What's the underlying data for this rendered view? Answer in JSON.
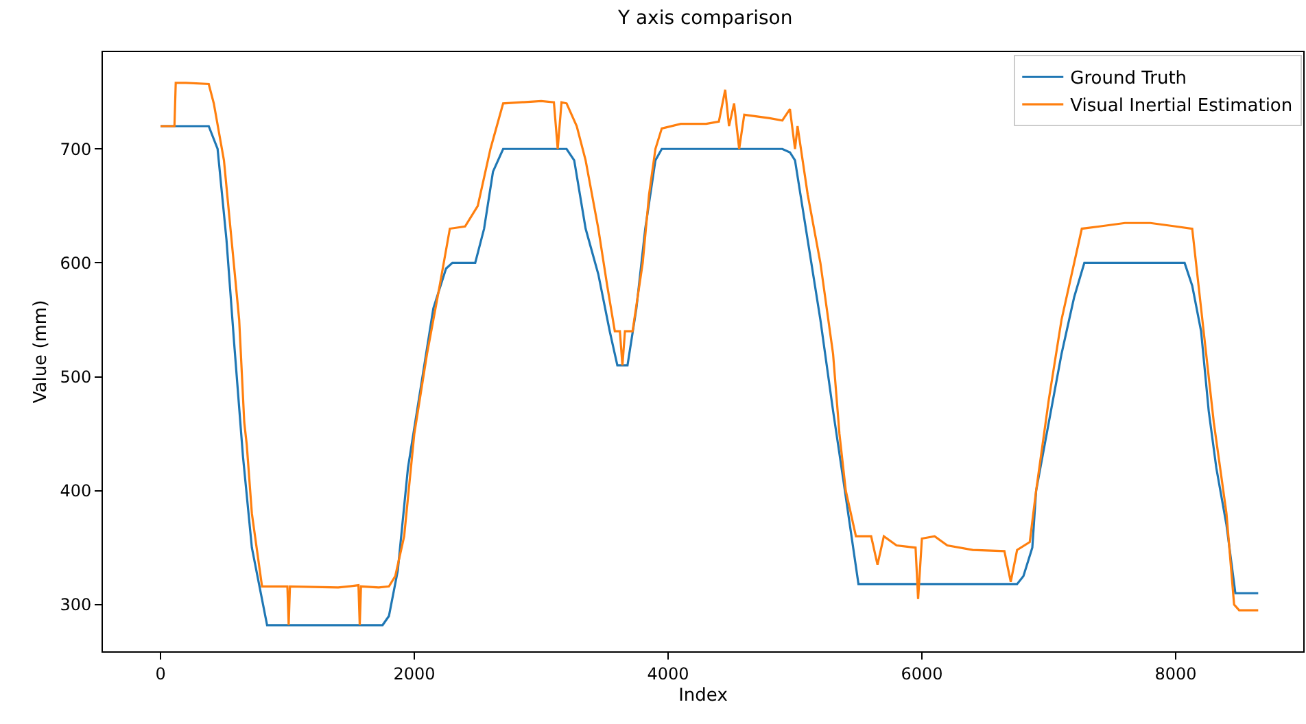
{
  "chart_data": {
    "type": "line",
    "title": "Y axis comparison",
    "xlabel": "Index",
    "ylabel": "Value (mm)",
    "xlim": [
      -454,
      9005
    ],
    "ylim": [
      259,
      785
    ],
    "xticks": [
      0,
      2000,
      4000,
      6000,
      8000
    ],
    "yticks": [
      300,
      400,
      500,
      600,
      700
    ],
    "legend": "top right",
    "series": [
      {
        "name": "Ground Truth",
        "color": "#1f77b4",
        "x": [
          0,
          380,
          450,
          520,
          580,
          650,
          720,
          840,
          1750,
          1800,
          1870,
          1950,
          2050,
          2150,
          2250,
          2300,
          2480,
          2550,
          2620,
          2700,
          3200,
          3260,
          3350,
          3450,
          3540,
          3600,
          3680,
          3750,
          3820,
          3900,
          3950,
          4900,
          4960,
          5000,
          5100,
          5200,
          5300,
          5380,
          5500,
          6750,
          6800,
          6870,
          6900,
          7000,
          7100,
          7200,
          7280,
          8070,
          8130,
          8200,
          8260,
          8320,
          8400,
          8470,
          8650
        ],
        "values": [
          720,
          720,
          700,
          620,
          530,
          430,
          350,
          282,
          282,
          290,
          330,
          420,
          490,
          560,
          595,
          600,
          600,
          630,
          680,
          700,
          700,
          690,
          630,
          590,
          540,
          510,
          510,
          560,
          630,
          690,
          700,
          700,
          697,
          690,
          620,
          550,
          470,
          410,
          318,
          318,
          325,
          350,
          400,
          460,
          520,
          570,
          600,
          600,
          580,
          540,
          470,
          420,
          370,
          310,
          310
        ]
      },
      {
        "name": "Visual Inertial Estimation",
        "color": "#ff7f0e",
        "x": [
          0,
          110,
          120,
          200,
          380,
          420,
          500,
          560,
          620,
          660,
          680,
          720,
          800,
          1000,
          1010,
          1020,
          1400,
          1560,
          1570,
          1580,
          1720,
          1800,
          1850,
          1920,
          2000,
          2100,
          2200,
          2280,
          2400,
          2500,
          2600,
          2700,
          3000,
          3100,
          3130,
          3160,
          3200,
          3280,
          3350,
          3450,
          3520,
          3580,
          3620,
          3640,
          3660,
          3720,
          3800,
          3850,
          3900,
          3950,
          4100,
          4300,
          4400,
          4450,
          4480,
          4520,
          4560,
          4600,
          4800,
          4900,
          4960,
          5000,
          5020,
          5100,
          5200,
          5300,
          5350,
          5400,
          5480,
          5600,
          5650,
          5700,
          5800,
          5950,
          5970,
          6000,
          6100,
          6200,
          6400,
          6650,
          6700,
          6750,
          6850,
          6900,
          7000,
          7100,
          7200,
          7260,
          7400,
          7600,
          7800,
          8000,
          8130,
          8200,
          8300,
          8400,
          8460,
          8500,
          8650
        ],
        "values": [
          720,
          720,
          758,
          758,
          757,
          740,
          690,
          620,
          550,
          460,
          440,
          380,
          316,
          316,
          282,
          316,
          315,
          317,
          282,
          316,
          315,
          316,
          325,
          360,
          450,
          520,
          580,
          630,
          632,
          650,
          700,
          740,
          742,
          741,
          700,
          741,
          740,
          720,
          690,
          630,
          580,
          540,
          540,
          510,
          540,
          540,
          600,
          660,
          700,
          718,
          722,
          722,
          724,
          752,
          720,
          740,
          700,
          730,
          727,
          725,
          735,
          700,
          720,
          660,
          600,
          520,
          450,
          400,
          360,
          360,
          335,
          360,
          352,
          350,
          305,
          358,
          360,
          352,
          348,
          347,
          320,
          348,
          355,
          400,
          480,
          550,
          600,
          630,
          632,
          635,
          635,
          632,
          630,
          560,
          460,
          380,
          300,
          295,
          295
        ]
      }
    ]
  }
}
